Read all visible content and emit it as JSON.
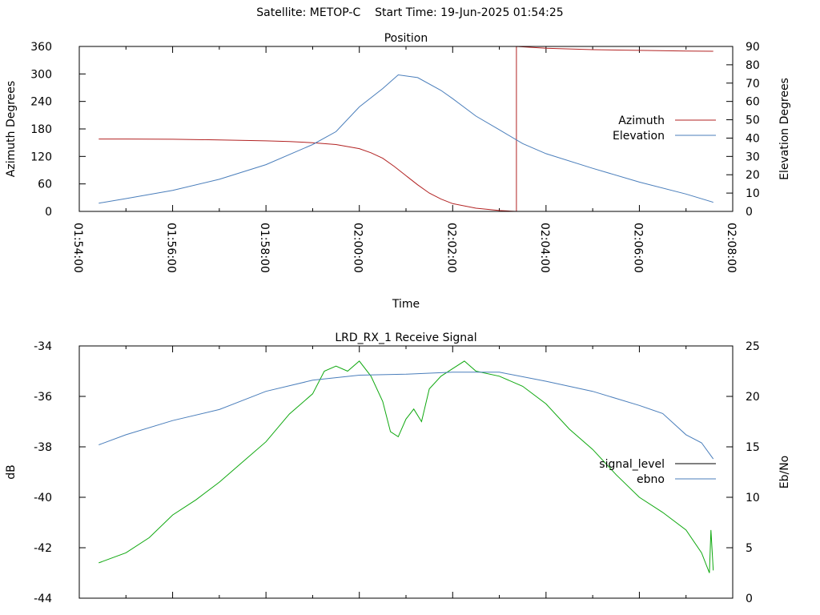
{
  "page": {
    "title_satellite": "Satellite: METOP-C",
    "title_start": "Start Time: 19-Jun-2025 01:54:25"
  },
  "chart_data": [
    {
      "type": "line",
      "title": "Position",
      "xlabel": "Time",
      "ylabel": "Azimuth Degrees",
      "y2label": "Elevation Degrees",
      "xlim": [
        "01:54:00",
        "02:08:00"
      ],
      "x_ticks": [
        "01:54:00",
        "01:56:00",
        "01:58:00",
        "02:00:00",
        "02:02:00",
        "02:04:00",
        "02:06:00",
        "02:08:00"
      ],
      "ylim": [
        0,
        360
      ],
      "y_ticks": [
        "0",
        "60",
        "120",
        "180",
        "240",
        "300",
        "360"
      ],
      "y2lim": [
        0,
        90
      ],
      "y2_ticks": [
        "0",
        "10",
        "20",
        "30",
        "40",
        "50",
        "60",
        "70",
        "80",
        "90"
      ],
      "legend_position": "right",
      "grid": false,
      "series": [
        {
          "name": "Azimuth",
          "axis": "left",
          "color": "#b22222",
          "points": [
            [
              "01:54:25",
              158
            ],
            [
              "01:55:00",
              158
            ],
            [
              "01:56:00",
              157.5
            ],
            [
              "01:57:00",
              156
            ],
            [
              "01:58:00",
              154
            ],
            [
              "01:58:30",
              152.5
            ],
            [
              "01:59:00",
              150
            ],
            [
              "01:59:30",
              146
            ],
            [
              "02:00:00",
              137
            ],
            [
              "02:00:15",
              128
            ],
            [
              "02:00:30",
              116
            ],
            [
              "02:00:45",
              98
            ],
            [
              "02:01:00",
              78
            ],
            [
              "02:01:15",
              58
            ],
            [
              "02:01:30",
              40
            ],
            [
              "02:01:45",
              27
            ],
            [
              "02:02:00",
              17
            ],
            [
              "02:02:30",
              7
            ],
            [
              "02:03:00",
              2
            ],
            [
              "02:03:22",
              0
            ],
            [
              "02:03:22",
              360
            ],
            [
              "02:04:00",
              356
            ],
            [
              "02:05:00",
              353
            ],
            [
              "02:06:00",
              351.5
            ],
            [
              "02:07:00",
              350
            ],
            [
              "02:07:35",
              349.5
            ]
          ]
        },
        {
          "name": "Elevation",
          "axis": "right",
          "color": "#4a7ebb",
          "points": [
            [
              "01:54:25",
              4.5
            ],
            [
              "01:55:00",
              7
            ],
            [
              "01:56:00",
              11.5
            ],
            [
              "01:57:00",
              17.5
            ],
            [
              "01:58:00",
              25.5
            ],
            [
              "01:59:00",
              36.5
            ],
            [
              "01:59:30",
              43.5
            ],
            [
              "02:00:00",
              57
            ],
            [
              "02:00:30",
              67
            ],
            [
              "02:00:50",
              74.5
            ],
            [
              "02:01:15",
              73
            ],
            [
              "02:01:45",
              66
            ],
            [
              "02:02:00",
              61.5
            ],
            [
              "02:02:30",
              52
            ],
            [
              "02:03:00",
              44.5
            ],
            [
              "02:03:30",
              37
            ],
            [
              "02:04:00",
              31.5
            ],
            [
              "02:05:00",
              23.5
            ],
            [
              "02:06:00",
              16
            ],
            [
              "02:07:00",
              9.5
            ],
            [
              "02:07:35",
              5
            ]
          ]
        }
      ]
    },
    {
      "type": "line",
      "title": "LRD_RX_1 Receive Signal",
      "xlabel": "",
      "ylabel": "dB",
      "y2label": "Eb/No",
      "xlim": [
        "01:54:00",
        "02:08:00"
      ],
      "ylim": [
        -44,
        -34
      ],
      "y_ticks": [
        "-44",
        "-42",
        "-40",
        "-38",
        "-36",
        "-34"
      ],
      "y2lim": [
        0,
        25
      ],
      "y2_ticks": [
        "0",
        "5",
        "10",
        "15",
        "20",
        "25"
      ],
      "legend_position": "right",
      "grid": false,
      "series": [
        {
          "name": "signal_level",
          "axis": "left",
          "color": "#0fa80f",
          "points": [
            [
              "01:54:25",
              -42.6
            ],
            [
              "01:55:00",
              -42.2
            ],
            [
              "01:55:30",
              -41.6
            ],
            [
              "01:56:00",
              -40.7
            ],
            [
              "01:56:30",
              -40.1
            ],
            [
              "01:57:00",
              -39.4
            ],
            [
              "01:57:30",
              -38.6
            ],
            [
              "01:58:00",
              -37.8
            ],
            [
              "01:58:30",
              -36.7
            ],
            [
              "01:59:00",
              -35.9
            ],
            [
              "01:59:15",
              -35.0
            ],
            [
              "01:59:30",
              -34.8
            ],
            [
              "01:59:45",
              -35.0
            ],
            [
              "02:00:00",
              -34.6
            ],
            [
              "02:00:15",
              -35.2
            ],
            [
              "02:00:30",
              -36.2
            ],
            [
              "02:00:40",
              -37.4
            ],
            [
              "02:00:50",
              -37.6
            ],
            [
              "02:01:00",
              -36.9
            ],
            [
              "02:01:10",
              -36.5
            ],
            [
              "02:01:20",
              -37.0
            ],
            [
              "02:01:30",
              -35.7
            ],
            [
              "02:01:45",
              -35.2
            ],
            [
              "02:02:00",
              -34.9
            ],
            [
              "02:02:15",
              -34.6
            ],
            [
              "02:02:30",
              -35.0
            ],
            [
              "02:03:00",
              -35.2
            ],
            [
              "02:03:30",
              -35.6
            ],
            [
              "02:04:00",
              -36.3
            ],
            [
              "02:04:30",
              -37.3
            ],
            [
              "02:05:00",
              -38.1
            ],
            [
              "02:05:30",
              -39.1
            ],
            [
              "02:06:00",
              -40.0
            ],
            [
              "02:06:30",
              -40.6
            ],
            [
              "02:07:00",
              -41.3
            ],
            [
              "02:07:20",
              -42.2
            ],
            [
              "02:07:30",
              -43.0
            ],
            [
              "02:07:32",
              -41.3
            ],
            [
              "02:07:35",
              -42.9
            ]
          ]
        },
        {
          "name": "ebno",
          "axis": "right",
          "color": "#4a7ebb",
          "points": [
            [
              "01:54:25",
              15.2
            ],
            [
              "01:55:00",
              16.2
            ],
            [
              "01:56:00",
              17.6
            ],
            [
              "01:57:00",
              18.7
            ],
            [
              "01:58:00",
              20.5
            ],
            [
              "01:59:00",
              21.6
            ],
            [
              "02:00:00",
              22.1
            ],
            [
              "02:01:00",
              22.2
            ],
            [
              "02:02:00",
              22.4
            ],
            [
              "02:03:00",
              22.4
            ],
            [
              "02:04:00",
              21.5
            ],
            [
              "02:05:00",
              20.5
            ],
            [
              "02:06:00",
              19.1
            ],
            [
              "02:06:30",
              18.3
            ],
            [
              "02:07:00",
              16.2
            ],
            [
              "02:07:20",
              15.4
            ],
            [
              "02:07:35",
              13.8
            ]
          ]
        }
      ]
    }
  ]
}
